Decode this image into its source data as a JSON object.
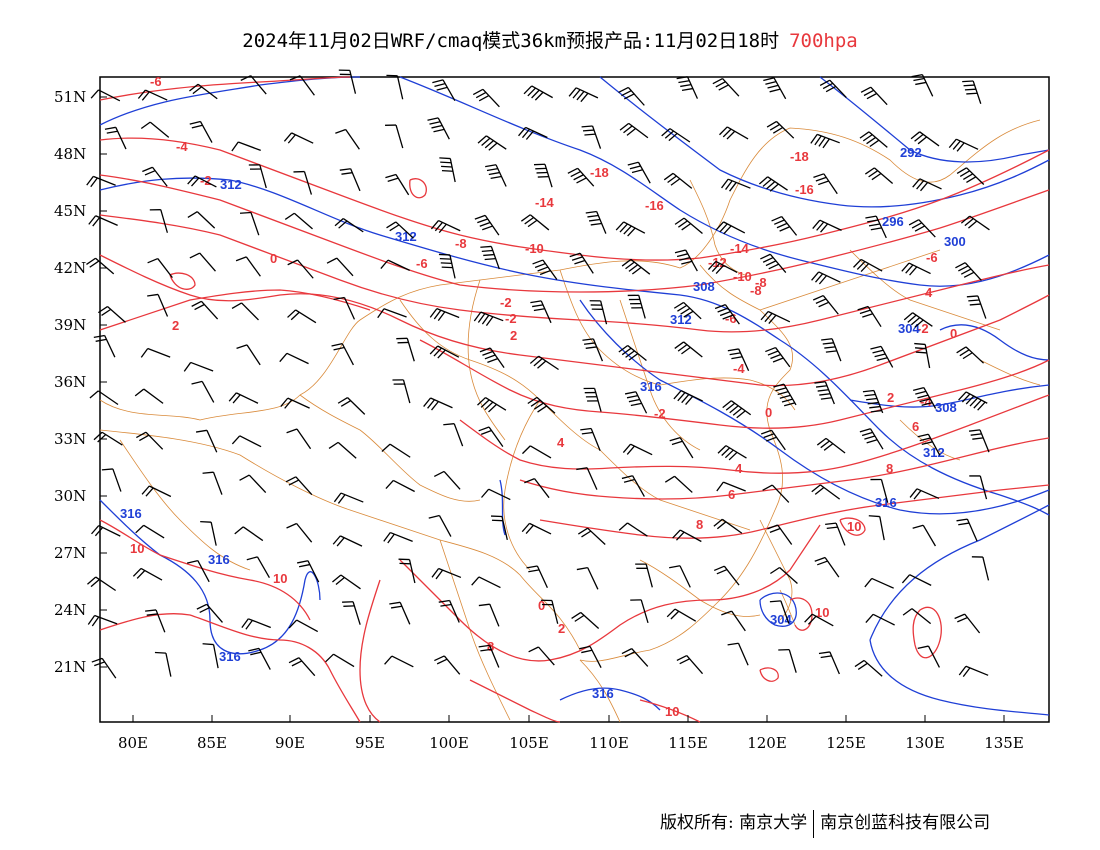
{
  "title": {
    "text": "2024年11月02日WRF/cmaq模式36km预报产品:11月02日18时",
    "level": "700hpa"
  },
  "colors": {
    "temperature": "#e8383d",
    "height": "#1f3fd6",
    "border": "#d98a3a",
    "wind": "#000000",
    "level_text": "#e8383d"
  },
  "axes": {
    "lat_labels": [
      "51N",
      "48N",
      "45N",
      "42N",
      "39N",
      "36N",
      "33N",
      "30N",
      "27N",
      "24N",
      "21N"
    ],
    "lon_labels": [
      "80E",
      "85E",
      "90E",
      "95E",
      "100E",
      "105E",
      "110E",
      "115E",
      "120E",
      "125E",
      "130E",
      "135E"
    ]
  },
  "contour_labels": {
    "temperature": [
      "-6",
      "-4",
      "-2",
      "0",
      "2",
      "-2",
      "-4",
      "-6",
      "-8",
      "-10",
      "-12",
      "-14",
      "-16",
      "-18",
      "-16",
      "-18",
      "-14",
      "-12",
      "-10",
      "-8",
      "-6",
      "-4",
      "-2",
      "0",
      "2",
      "4",
      "6",
      "8",
      "10",
      "10",
      "10",
      "10",
      "10",
      "8",
      "8",
      "6",
      "4",
      "4",
      "2",
      "0",
      "-2",
      "-4",
      "-6",
      "-2",
      "0",
      "2",
      "-8"
    ],
    "height": [
      "312",
      "312",
      "312",
      "308",
      "316",
      "316",
      "316",
      "316",
      "316",
      "316",
      "292",
      "296",
      "300",
      "304",
      "308",
      "312",
      "312",
      "304"
    ]
  },
  "footer": {
    "left": "版权所有: 南京大学",
    "right": "南京创蓝科技有限公司"
  }
}
